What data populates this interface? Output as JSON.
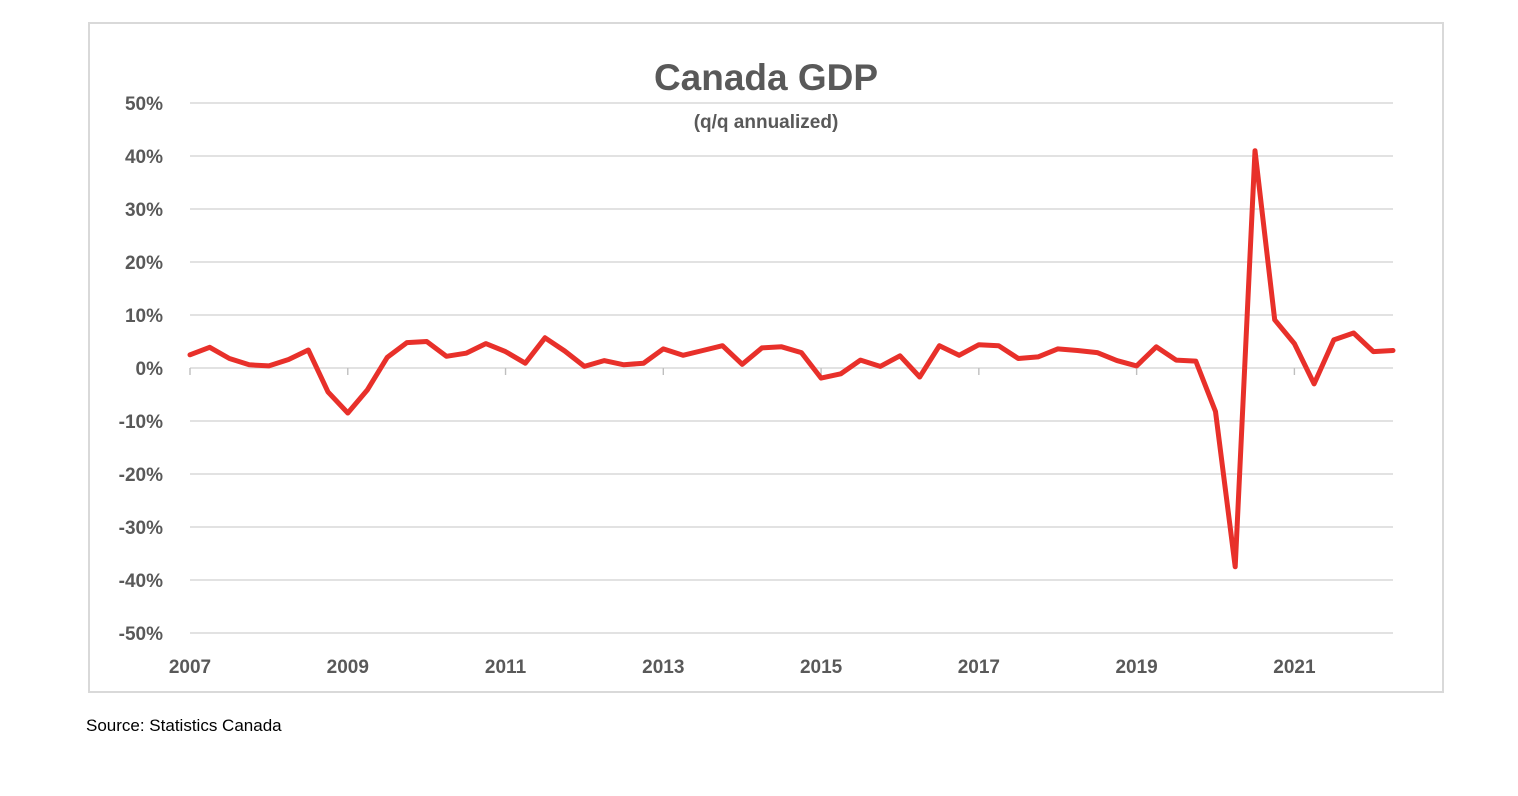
{
  "source": "Source: Statistics Canada",
  "chart_data": {
    "type": "line",
    "title": "Canada GDP",
    "subtitle": "(q/q annualized)",
    "xlabel": "",
    "ylabel": "",
    "x_tick_labels": [
      "2007",
      "2009",
      "2011",
      "2013",
      "2015",
      "2017",
      "2019",
      "2021"
    ],
    "y_tick_labels": [
      "50%",
      "40%",
      "30%",
      "20%",
      "10%",
      "0%",
      "-10%",
      "-20%",
      "-30%",
      "-40%",
      "-50%"
    ],
    "ylim": [
      -50,
      50
    ],
    "y_ticks": [
      50,
      40,
      30,
      20,
      10,
      0,
      -10,
      -20,
      -30,
      -40,
      -50
    ],
    "y_unit": "%",
    "x_start_year": 2007,
    "x_end_year": 2022.25,
    "grid": true,
    "legend": "none",
    "series": [
      {
        "color": "#e8302a",
        "x": [
          2007.0,
          2007.25,
          2007.5,
          2007.75,
          2008.0,
          2008.25,
          2008.5,
          2008.75,
          2009.0,
          2009.25,
          2009.5,
          2009.75,
          2010.0,
          2010.25,
          2010.5,
          2010.75,
          2011.0,
          2011.25,
          2011.5,
          2011.75,
          2012.0,
          2012.25,
          2012.5,
          2012.75,
          2013.0,
          2013.25,
          2013.5,
          2013.75,
          2014.0,
          2014.25,
          2014.5,
          2014.75,
          2015.0,
          2015.25,
          2015.5,
          2015.75,
          2016.0,
          2016.25,
          2016.5,
          2016.75,
          2017.0,
          2017.25,
          2017.5,
          2017.75,
          2018.0,
          2018.25,
          2018.5,
          2018.75,
          2019.0,
          2019.25,
          2019.5,
          2019.75,
          2020.0,
          2020.25,
          2020.5,
          2020.75,
          2021.0,
          2021.25,
          2021.5,
          2021.75,
          2022.0,
          2022.25
        ],
        "values": [
          2.5,
          3.9,
          1.8,
          0.6,
          0.4,
          1.6,
          3.4,
          -4.5,
          -8.5,
          -4.1,
          2.0,
          4.8,
          5.0,
          2.2,
          2.8,
          4.6,
          3.1,
          0.9,
          5.7,
          3.2,
          0.3,
          1.4,
          0.6,
          0.9,
          3.6,
          2.4,
          3.3,
          4.2,
          0.7,
          3.8,
          4.0,
          2.9,
          -1.9,
          -1.1,
          1.5,
          0.3,
          2.3,
          -1.7,
          4.2,
          2.4,
          4.4,
          4.2,
          1.8,
          2.1,
          3.6,
          3.3,
          2.9,
          1.4,
          0.4,
          4.0,
          1.5,
          1.3,
          -8.2,
          -37.5,
          41.0,
          9.1,
          4.6,
          -3.0,
          5.3,
          6.6,
          3.1,
          3.3
        ]
      }
    ]
  }
}
